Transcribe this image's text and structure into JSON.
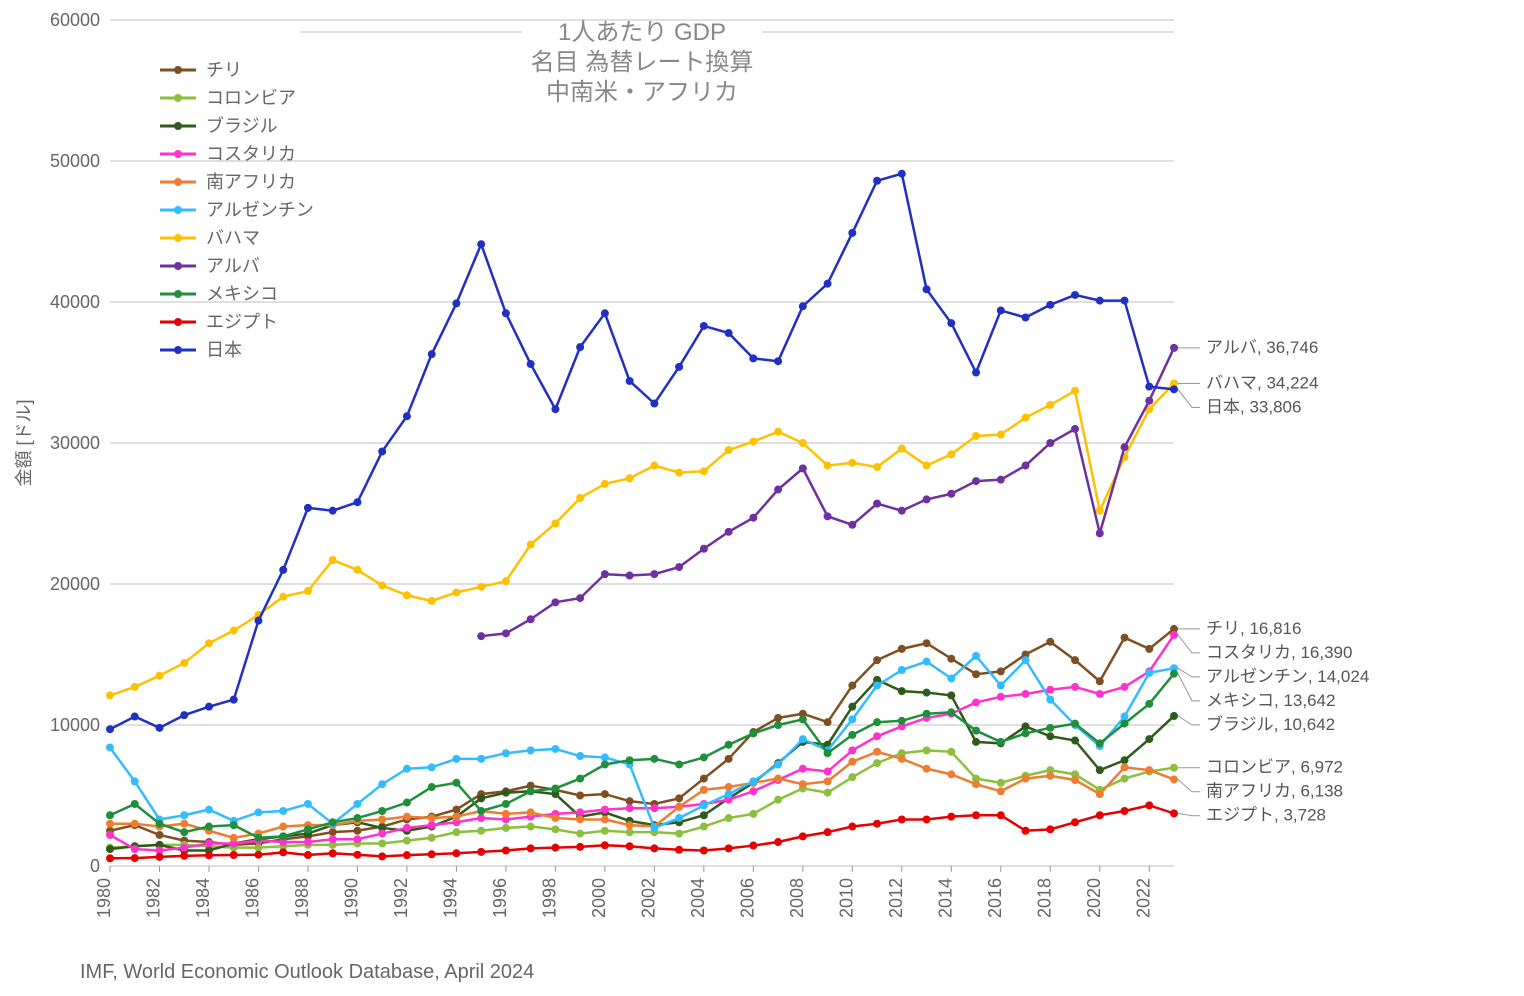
{
  "chart": {
    "type": "line",
    "title_lines": [
      "1人あたり GDP",
      "名目 為替レート換算",
      "中南米・アフリカ"
    ],
    "title_fontsize": 24,
    "title_color": "#888888",
    "ylabel": "金額 [ドル]",
    "ylabel_fontsize": 18,
    "footnote": "IMF, World Economic Outlook Database, April 2024",
    "footnote_fontsize": 20,
    "background_color": "#ffffff",
    "grid_color": "#bfbfbf",
    "ylim": [
      0,
      60000
    ],
    "ytick_step": 10000,
    "xlim": [
      1980,
      2023
    ],
    "xtick_step": 2,
    "xtick_rotate": -90,
    "marker_radius": 4,
    "line_width": 2.5,
    "years": [
      1980,
      1981,
      1982,
      1983,
      1984,
      1985,
      1986,
      1987,
      1988,
      1989,
      1990,
      1991,
      1992,
      1993,
      1994,
      1995,
      1996,
      1997,
      1998,
      1999,
      2000,
      2001,
      2002,
      2003,
      2004,
      2005,
      2006,
      2007,
      2008,
      2009,
      2010,
      2011,
      2012,
      2013,
      2014,
      2015,
      2016,
      2017,
      2018,
      2019,
      2020,
      2021,
      2022,
      2023
    ],
    "series": [
      {
        "name": "チリ",
        "color": "#7f4f24",
        "end_label": "チリ, 16,816",
        "values": [
          2500,
          2900,
          2200,
          1800,
          1700,
          1500,
          1600,
          1900,
          2100,
          2400,
          2500,
          2800,
          3300,
          3500,
          4000,
          5100,
          5300,
          5700,
          5400,
          5000,
          5100,
          4600,
          4400,
          4800,
          6200,
          7600,
          9500,
          10500,
          10800,
          10200,
          12800,
          14600,
          15400,
          15800,
          14700,
          13600,
          13800,
          15000,
          15900,
          14600,
          13100,
          16200,
          15400,
          16816
        ]
      },
      {
        "name": "コロンビア",
        "color": "#8cbf3f",
        "end_label": "コロンビア, 6,972",
        "values": [
          1300,
          1400,
          1500,
          1500,
          1400,
          1300,
          1300,
          1400,
          1500,
          1500,
          1600,
          1600,
          1800,
          2000,
          2400,
          2500,
          2700,
          2800,
          2600,
          2300,
          2500,
          2400,
          2400,
          2300,
          2800,
          3400,
          3700,
          4700,
          5500,
          5200,
          6300,
          7300,
          8000,
          8200,
          8100,
          6200,
          5900,
          6400,
          6800,
          6500,
          5400,
          6200,
          6700,
          6972
        ]
      },
      {
        "name": "ブラジル",
        "color": "#2e5a1c",
        "end_label": "ブラジル, 10,642",
        "values": [
          1200,
          1400,
          1500,
          1100,
          1100,
          1600,
          1900,
          2100,
          2300,
          2900,
          3100,
          2700,
          2500,
          2800,
          3500,
          4800,
          5200,
          5300,
          5100,
          3500,
          3800,
          3200,
          2900,
          3100,
          3600,
          4800,
          5900,
          7300,
          8800,
          8600,
          11300,
          13200,
          12400,
          12300,
          12100,
          8800,
          8700,
          9900,
          9200,
          8900,
          6800,
          7500,
          9000,
          10642
        ]
      },
      {
        "name": "コスタリカ",
        "color": "#ff33cc",
        "end_label": "コスタリカ, 16,390",
        "values": [
          2200,
          1200,
          1100,
          1300,
          1600,
          1600,
          1800,
          1700,
          1700,
          1900,
          1900,
          2300,
          2700,
          2900,
          3100,
          3400,
          3300,
          3500,
          3700,
          3800,
          4000,
          4100,
          4100,
          4200,
          4400,
          4700,
          5300,
          6100,
          6900,
          6700,
          8200,
          9200,
          9900,
          10500,
          10800,
          11600,
          12000,
          12200,
          12500,
          12700,
          12200,
          12700,
          13800,
          16390
        ]
      },
      {
        "name": "南アフリカ",
        "color": "#ed7d31",
        "end_label": "南アフリカ, 6,138",
        "values": [
          3000,
          3000,
          2800,
          3000,
          2500,
          2000,
          2300,
          2800,
          2900,
          2900,
          3200,
          3300,
          3500,
          3400,
          3500,
          3900,
          3700,
          3800,
          3400,
          3300,
          3300,
          2900,
          2800,
          4200,
          5400,
          5600,
          5900,
          6200,
          5800,
          6000,
          7400,
          8100,
          7600,
          6900,
          6500,
          5800,
          5300,
          6200,
          6400,
          6100,
          5100,
          7000,
          6800,
          6138
        ]
      },
      {
        "name": "アルゼンチン",
        "color": "#33bbff",
        "end_label": "アルゼンチン, 14,024",
        "values": [
          8400,
          6000,
          3300,
          3600,
          4000,
          3200,
          3800,
          3900,
          4400,
          3000,
          4400,
          5800,
          6900,
          7000,
          7600,
          7600,
          8000,
          8200,
          8300,
          7800,
          7700,
          7200,
          2700,
          3400,
          4300,
          5100,
          6000,
          7200,
          9000,
          8200,
          10400,
          12800,
          13900,
          14500,
          13300,
          14900,
          12800,
          14600,
          11800,
          10000,
          8500,
          10600,
          13700,
          14024
        ]
      },
      {
        "name": "バハマ",
        "color": "#ffc000",
        "end_label": "バハマ, 34,224",
        "values": [
          12100,
          12700,
          13500,
          14400,
          15800,
          16700,
          17800,
          19100,
          19500,
          21700,
          21000,
          19900,
          19200,
          18800,
          19400,
          19800,
          20200,
          22800,
          24300,
          26100,
          27100,
          27500,
          28400,
          27900,
          28000,
          29500,
          30100,
          30800,
          30000,
          28400,
          28600,
          28300,
          29600,
          28400,
          29200,
          30500,
          30600,
          31800,
          32700,
          33700,
          25200,
          29000,
          32400,
          34224
        ]
      },
      {
        "name": "アルバ",
        "color": "#7030a0",
        "end_label": "アルバ, 36,746",
        "values": [
          null,
          null,
          null,
          null,
          null,
          null,
          null,
          null,
          null,
          null,
          null,
          null,
          null,
          null,
          null,
          16300,
          16500,
          17500,
          18700,
          19000,
          20700,
          20600,
          20700,
          21200,
          22500,
          23700,
          24700,
          26700,
          28200,
          24800,
          24200,
          25700,
          25200,
          26000,
          26400,
          27300,
          27400,
          28400,
          30000,
          31000,
          23600,
          29700,
          33000,
          36746
        ]
      },
      {
        "name": "メキシコ",
        "color": "#1f8f3b",
        "end_label": "メキシコ, 13,642",
        "values": [
          3600,
          4400,
          3000,
          2400,
          2800,
          2900,
          2000,
          2100,
          2600,
          3100,
          3400,
          3900,
          4500,
          5600,
          5900,
          3900,
          4400,
          5300,
          5500,
          6200,
          7200,
          7500,
          7600,
          7200,
          7700,
          8600,
          9400,
          10000,
          10400,
          8000,
          9300,
          10200,
          10300,
          10800,
          10900,
          9600,
          8800,
          9400,
          9800,
          10100,
          8700,
          10100,
          11500,
          13642
        ]
      },
      {
        "name": "エジプト",
        "color": "#e60000",
        "end_label": "エジプト, 3,728",
        "values": [
          550,
          560,
          650,
          720,
          760,
          780,
          800,
          970,
          780,
          900,
          800,
          680,
          770,
          830,
          900,
          1000,
          1100,
          1250,
          1300,
          1360,
          1470,
          1400,
          1250,
          1150,
          1100,
          1250,
          1450,
          1700,
          2100,
          2400,
          2800,
          3000,
          3300,
          3300,
          3500,
          3600,
          3600,
          2500,
          2600,
          3100,
          3600,
          3900,
          4300,
          3728
        ]
      },
      {
        "name": "日本",
        "color": "#2030c0",
        "end_label": "日本, 33,806",
        "values": [
          9700,
          10600,
          9800,
          10700,
          11300,
          11800,
          17400,
          21000,
          25400,
          25200,
          25800,
          29400,
          31900,
          36300,
          39900,
          44100,
          39200,
          35600,
          32400,
          36800,
          39200,
          34400,
          32800,
          35400,
          38300,
          37800,
          36000,
          35800,
          39700,
          41300,
          44900,
          48600,
          49100,
          40900,
          38500,
          35000,
          39400,
          38900,
          39800,
          40500,
          40100,
          40100,
          34000,
          33806
        ]
      }
    ]
  }
}
